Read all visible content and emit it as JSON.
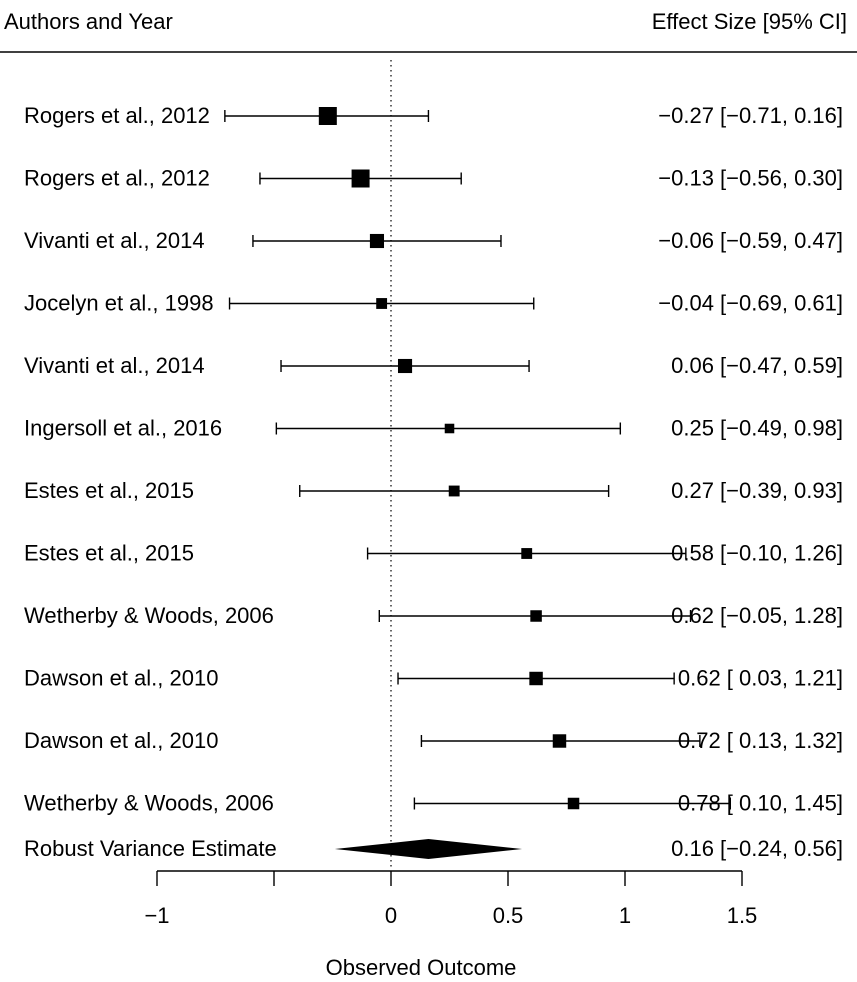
{
  "chart_data": {
    "type": "forest",
    "header": {
      "left": "Authors and Year",
      "right": "Effect Size [95% CI]"
    },
    "reference_line_x": 0,
    "xlabel": "Observed Outcome",
    "xlim": [
      -1,
      1.5
    ],
    "ticks": [
      {
        "value": -1,
        "label": "−1"
      },
      {
        "value": -0.5,
        "label": ""
      },
      {
        "value": 0,
        "label": "0"
      },
      {
        "value": 0.5,
        "label": "0.5"
      },
      {
        "value": 1,
        "label": "1"
      },
      {
        "value": 1.5,
        "label": "1.5"
      }
    ],
    "studies": [
      {
        "label": "Rogers et al., 2012",
        "estimate": -0.27,
        "ci_low": -0.71,
        "ci_high": 0.16,
        "ci_text": "−0.27 [−0.71, 0.16]",
        "weight": 1.0
      },
      {
        "label": "Rogers et al., 2012",
        "estimate": -0.13,
        "ci_low": -0.56,
        "ci_high": 0.3,
        "ci_text": "−0.13 [−0.56, 0.30]",
        "weight": 1.0
      },
      {
        "label": "Vivanti et al., 2014",
        "estimate": -0.06,
        "ci_low": -0.59,
        "ci_high": 0.47,
        "ci_text": "−0.06 [−0.59, 0.47]",
        "weight": 0.7
      },
      {
        "label": "Jocelyn et al., 1998",
        "estimate": -0.04,
        "ci_low": -0.69,
        "ci_high": 0.61,
        "ci_text": "−0.04 [−0.69, 0.61]",
        "weight": 0.45
      },
      {
        "label": "Vivanti et al., 2014",
        "estimate": 0.06,
        "ci_low": -0.47,
        "ci_high": 0.59,
        "ci_text": "0.06 [−0.47, 0.59]",
        "weight": 0.7
      },
      {
        "label": "Ingersoll et al., 2016",
        "estimate": 0.25,
        "ci_low": -0.49,
        "ci_high": 0.98,
        "ci_text": "0.25 [−0.49, 0.98]",
        "weight": 0.35
      },
      {
        "label": "Estes et al., 2015",
        "estimate": 0.27,
        "ci_low": -0.39,
        "ci_high": 0.93,
        "ci_text": "0.27 [−0.39, 0.93]",
        "weight": 0.45
      },
      {
        "label": "Estes et al., 2015",
        "estimate": 0.58,
        "ci_low": -0.1,
        "ci_high": 1.26,
        "ci_text": "0.58 [−0.10, 1.26]",
        "weight": 0.45
      },
      {
        "label": "Wetherby & Woods, 2006",
        "estimate": 0.62,
        "ci_low": -0.05,
        "ci_high": 1.28,
        "ci_text": "0.62 [−0.05, 1.28]",
        "weight": 0.5
      },
      {
        "label": "Dawson et al., 2010",
        "estimate": 0.62,
        "ci_low": 0.03,
        "ci_high": 1.21,
        "ci_text": "0.62 [ 0.03, 1.21]",
        "weight": 0.65
      },
      {
        "label": "Dawson et al., 2010",
        "estimate": 0.72,
        "ci_low": 0.13,
        "ci_high": 1.32,
        "ci_text": "0.72 [ 0.13, 1.32]",
        "weight": 0.65
      },
      {
        "label": "Wetherby & Woods, 2006",
        "estimate": 0.78,
        "ci_low": 0.1,
        "ci_high": 1.45,
        "ci_text": "0.78 [ 0.10, 1.45]",
        "weight": 0.5
      }
    ],
    "summary": {
      "label": "Robust Variance Estimate",
      "estimate": 0.16,
      "ci_low": -0.24,
      "ci_high": 0.56,
      "ci_text": "0.16 [−0.24, 0.56]"
    }
  }
}
